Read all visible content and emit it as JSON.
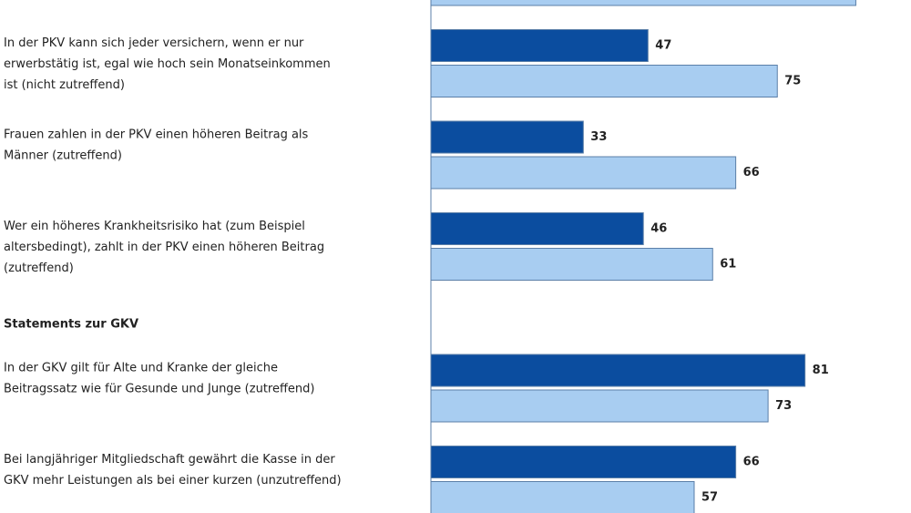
{
  "chart_data": {
    "type": "bar",
    "orientation": "horizontal",
    "categories": [
      null,
      [
        "In der PKV kann sich jeder versichern, wenn er nur",
        "erwerbstätig ist, egal wie hoch sein Monatseinkommen",
        "ist (nicht zutreffend)"
      ],
      [
        "Frauen zahlen in der PKV einen höheren Beitrag als",
        "Männer (zutreffend)"
      ],
      [
        "Wer ein höheres Krankheitsrisiko hat (zum Beispiel",
        "altersbedingt), zahlt in der PKV einen höheren Beitrag",
        "(zutreffend)"
      ],
      [
        "In der GKV gilt für Alte und Kranke der gleiche",
        "Beitragssatz wie für Gesunde und Junge (zutreffend)"
      ],
      [
        "Bei langjähriger Mitgliedschaft gewährt die Kasse in der",
        "GKV mehr Leistungen als bei einer kurzen (unzutreffend)"
      ]
    ],
    "section_label": "Statements zur GKV",
    "section_before": 4,
    "series": [
      {
        "color": "#0b4d9f",
        "values": [
          null,
          47,
          33,
          46,
          81,
          66
        ]
      },
      {
        "color": "#a8cdf1",
        "values": [
          92,
          75,
          66,
          61,
          73,
          57
        ]
      }
    ],
    "xlim": [
      0,
      100
    ],
    "data_labels": true
  }
}
